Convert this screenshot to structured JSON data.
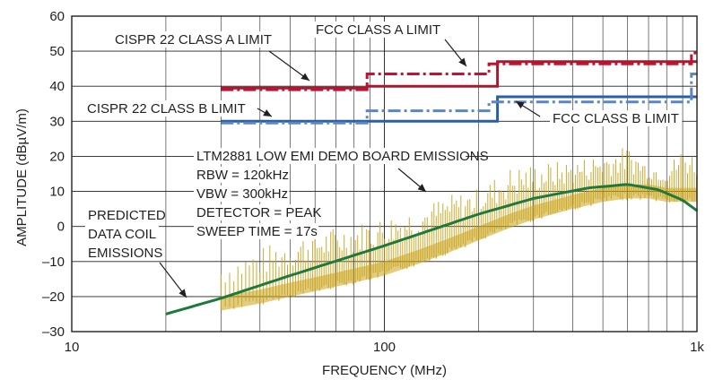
{
  "chart_data": {
    "type": "line",
    "title": "",
    "xlabel": "FREQUENCY (MHz)",
    "ylabel": "AMPLITUDE (dBµV/m)",
    "x_scale": "log",
    "xlim": [
      10,
      1000
    ],
    "ylim": [
      -30,
      60
    ],
    "grid": true,
    "x_ticks": [
      {
        "value": 10,
        "label": "10"
      },
      {
        "value": 100,
        "label": "100"
      },
      {
        "value": 1000,
        "label": "1k"
      }
    ],
    "y_ticks": [
      {
        "value": 60,
        "label": "60"
      },
      {
        "value": 50,
        "label": "50"
      },
      {
        "value": 40,
        "label": "40"
      },
      {
        "value": 30,
        "label": "30"
      },
      {
        "value": 20,
        "label": "20"
      },
      {
        "value": 10,
        "label": "10"
      },
      {
        "value": 0,
        "label": "0"
      },
      {
        "value": -10,
        "label": "–10"
      },
      {
        "value": -20,
        "label": "–20"
      },
      {
        "value": -30,
        "label": "–30"
      }
    ],
    "series": [
      {
        "name": "CISPR 22 CLASS A LIMIT",
        "color": "#a6192e",
        "style": "solid",
        "step": true,
        "x": [
          30,
          88,
          88,
          230,
          230,
          1000
        ],
        "y": [
          39.5,
          39.5,
          40,
          40,
          47,
          47
        ]
      },
      {
        "name": "FCC CLASS A LIMIT",
        "color": "#c8102e",
        "style": "dashdot",
        "step": true,
        "x": [
          30,
          88,
          88,
          216,
          216,
          960,
          960,
          1000
        ],
        "y": [
          39,
          39,
          43.5,
          43.5,
          46.4,
          46.4,
          49.5,
          49.5
        ]
      },
      {
        "name": "CISPR 22 CLASS B LIMIT",
        "color": "#2a5fa8",
        "style": "solid",
        "step": true,
        "x": [
          30,
          230,
          230,
          1000
        ],
        "y": [
          30,
          30,
          37,
          37
        ]
      },
      {
        "name": "FCC CLASS B LIMIT",
        "color": "#5b86c4",
        "style": "dashdot",
        "step": true,
        "x": [
          30,
          88,
          88,
          216,
          216,
          960,
          960,
          1000
        ],
        "y": [
          29.5,
          29.5,
          33,
          33,
          35.5,
          35.5,
          43.5,
          43.5
        ]
      },
      {
        "name": "PREDICTED DATA COIL EMISSIONS",
        "color": "#1e7a3c",
        "style": "solid",
        "x": [
          20,
          30,
          50,
          100,
          200,
          300,
          450,
          600,
          750,
          900,
          1000
        ],
        "y": [
          -25,
          -20.5,
          -14,
          -5.5,
          3.5,
          8,
          11,
          12,
          10.5,
          7.5,
          4.5
        ]
      },
      {
        "name": "LTM2881 LOW EMI DEMO BOARD EMISSIONS",
        "color": "#c8a217",
        "style": "spikes",
        "x": [
          30,
          40,
          50,
          60,
          80,
          100,
          130,
          160,
          200,
          250,
          300,
          400,
          500,
          600,
          700,
          800,
          900,
          1000
        ],
        "y_floor": [
          -21,
          -19,
          -17,
          -15.5,
          -13,
          -11,
          -7.5,
          -4.5,
          -1,
          2.5,
          5,
          8,
          10,
          11,
          11,
          10,
          10,
          10
        ],
        "y_peak": [
          -10,
          -6,
          -3,
          -1,
          1,
          3,
          6,
          9,
          11,
          17,
          18,
          19,
          21,
          23,
          18,
          17,
          23,
          21
        ]
      }
    ],
    "annotations": [
      {
        "id": "cispr-a",
        "lines": [
          "CISPR 22 CLASS A LIMIT"
        ]
      },
      {
        "id": "fcc-a",
        "lines": [
          "FCC CLASS A LIMIT"
        ]
      },
      {
        "id": "cispr-b",
        "lines": [
          "CISPR 22 CLASS B LIMIT"
        ]
      },
      {
        "id": "fcc-b",
        "lines": [
          "FCC CLASS B LIMIT"
        ]
      },
      {
        "id": "ltm",
        "lines": [
          "LTM2881 LOW EMI DEMO BOARD EMISSIONS",
          "RBW = 120kHz",
          "VBW = 300kHz",
          "DETECTOR = PEAK",
          "SWEEP TIME = 17s"
        ]
      },
      {
        "id": "pred",
        "lines": [
          "PREDICTED",
          "DATA COIL",
          "EMISSIONS"
        ]
      }
    ]
  }
}
